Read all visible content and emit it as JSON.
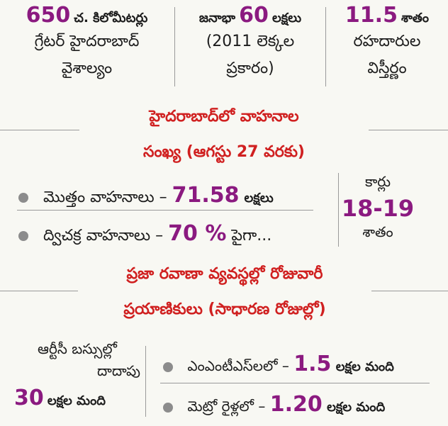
{
  "top": {
    "area": {
      "value": "650",
      "unit": "చ. కిలోమీటర్లు",
      "line2": "గ్రేటర్ హైదరాబాద్",
      "line3": "వైశాల్యం"
    },
    "population": {
      "prefix": "జనాభా",
      "value": "60",
      "unit": "లక్షలు",
      "line2": "(2011 లెక్కల",
      "line3": "ప్రకారం)"
    },
    "roads": {
      "value": "11.5",
      "unit": "శాతం",
      "line2": "రహదారుల",
      "line3": "విస్తీర్ణం"
    }
  },
  "vehicles": {
    "heading_line1": "హైదరాబాద్‌లో వాహనాల",
    "heading_line2": "సంఖ్య (ఆగస్టు 27 వరకు)",
    "items": [
      {
        "label": "మొత్తం వాహనాలు –",
        "value": "71.58",
        "unit": "లక్షలు"
      },
      {
        "label": "ద్విచక్ర వాహనాలు –",
        "value": "70 %",
        "unit": "పైగా..."
      }
    ],
    "cars": {
      "label": "కార్లు",
      "value": "18-19",
      "unit": "శాతం"
    }
  },
  "transport": {
    "heading_line1": "ప్రజా రవాణా వ్యవస్థల్లో రోజువారీ",
    "heading_line2": "ప్రయాణికులు (సాధారణ రోజుల్లో)",
    "rtc": {
      "line1": "ఆర్టీసీ బస్సుల్లో",
      "line2": "దాదాపు",
      "value": "30",
      "unit": "లక్షల మంది"
    },
    "items": [
      {
        "label": "ఎంఎంటీఎస్‌లలో –",
        "value": "1.5",
        "unit": "లక్షల మంది"
      },
      {
        "label": "మెట్రో రైళ్లలో –",
        "value": "1.20",
        "unit": "లక్షల మంది"
      }
    ]
  },
  "colors": {
    "accent_purple": "#8b1a80",
    "accent_red": "#d02020",
    "background": "#f8f8f3"
  }
}
